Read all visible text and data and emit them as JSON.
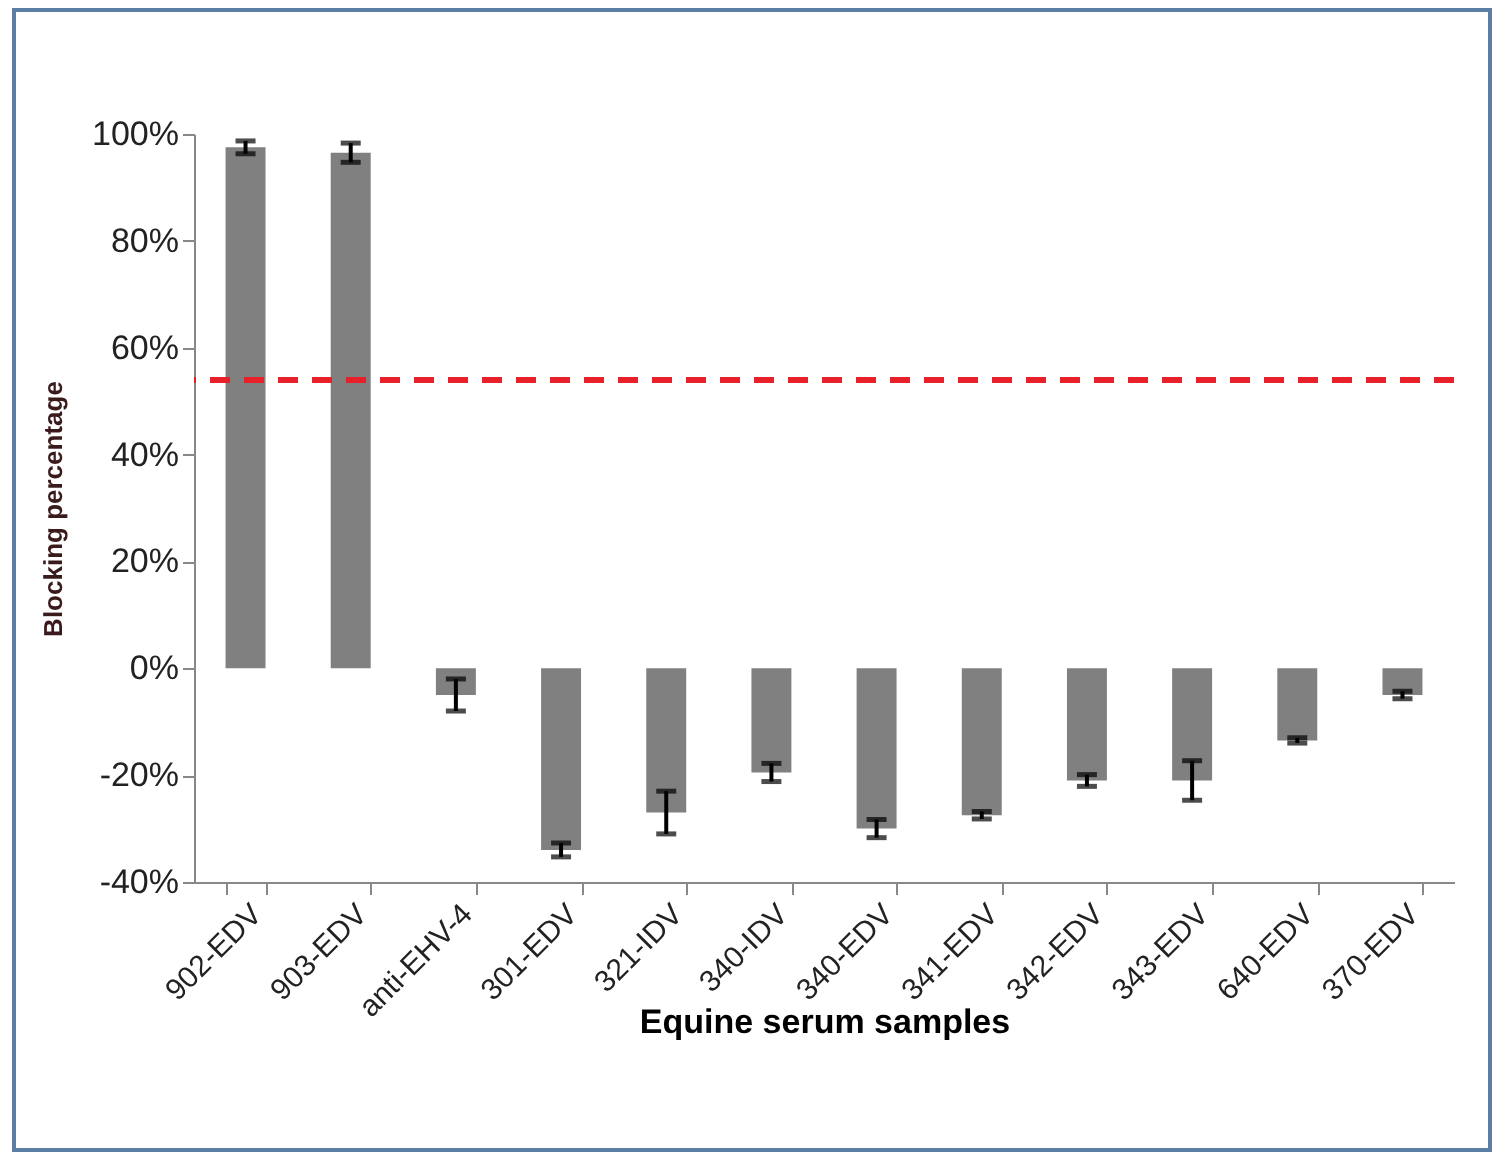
{
  "chart_data": {
    "type": "bar",
    "xlabel": "Equine serum samples",
    "ylabel": "Blocking percentage",
    "categories": [
      "902-EDV",
      "903-EDV",
      "anti-EHV-4",
      "301-EDV",
      "321-IDV",
      "340-IDV",
      "340-EDV",
      "341-EDV",
      "342-EDV",
      "343-EDV",
      "640-EDV",
      "370-EDV"
    ],
    "values": [
      97.5,
      96.5,
      -5,
      -34,
      -27,
      -19.5,
      -30,
      -27.5,
      -21,
      -21,
      -13.5,
      -5
    ],
    "errors": [
      1.2,
      1.8,
      3,
      1.3,
      4,
      1.7,
      1.7,
      0.7,
      1.1,
      3.7,
      0.5,
      0.7
    ],
    "color": "#808080",
    "ylim": [
      -40,
      100
    ],
    "yticks": [
      {
        "value": -40,
        "label": "-40%"
      },
      {
        "value": -20,
        "label": "-20%"
      },
      {
        "value": 0,
        "label": "0%"
      },
      {
        "value": 20,
        "label": "20%"
      },
      {
        "value": 40,
        "label": "40%"
      },
      {
        "value": 60,
        "label": "60%"
      },
      {
        "value": 80,
        "label": "80%"
      },
      {
        "value": 100,
        "label": "100%"
      }
    ],
    "ref_lines": [
      {
        "axis": "y",
        "value": 54,
        "label": null,
        "color": "#e8202a",
        "line_style": "dashed"
      }
    ],
    "grid": false
  }
}
